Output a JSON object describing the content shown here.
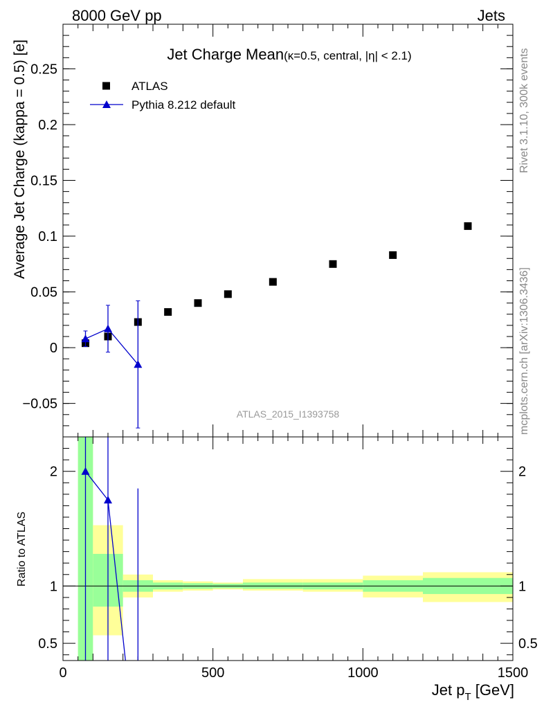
{
  "header": {
    "left": "8000 GeV pp",
    "right": "Jets"
  },
  "side_text": {
    "rivet": "Rivet 3.1.10,  300k events",
    "mcplots": "mcplots.cern.ch [arXiv:1306.3436]"
  },
  "chart_data": [
    {
      "type": "scatter",
      "title_main": "Jet Charge Mean",
      "title_sub": "(κ=0.5, central, |η| < 2.1)",
      "watermark": "ATLAS_2015_I1393758",
      "ylabel": "Average Jet Charge (kappa = 0.5) [e]",
      "xlim": [
        0,
        1500
      ],
      "ylim": [
        -0.08,
        0.29
      ],
      "y_ticks": [
        {
          "value": -0.05,
          "label": "−0.05"
        },
        {
          "value": 0,
          "label": "0"
        },
        {
          "value": 0.05,
          "label": "0.05"
        },
        {
          "value": 0.1,
          "label": "0.1"
        },
        {
          "value": 0.15,
          "label": "0.15"
        },
        {
          "value": 0.2,
          "label": "0.2"
        },
        {
          "value": 0.25,
          "label": "0.25"
        }
      ],
      "legend": [
        {
          "label": "ATLAS",
          "marker": "square",
          "color": "#000000"
        },
        {
          "label": "Pythia 8.212 default",
          "marker": "triangle",
          "color": "#0000cc"
        }
      ],
      "series": [
        {
          "name": "ATLAS",
          "color": "#000000",
          "marker": "square",
          "x": [
            75,
            150,
            250,
            350,
            450,
            550,
            700,
            900,
            1100,
            1350
          ],
          "y": [
            0.004,
            0.01,
            0.023,
            0.032,
            0.04,
            0.048,
            0.059,
            0.075,
            0.083,
            0.109
          ]
        },
        {
          "name": "Pythia 8.212 default",
          "color": "#0000cc",
          "marker": "triangle",
          "x": [
            75,
            150,
            250
          ],
          "y": [
            0.008,
            0.017,
            -0.015
          ],
          "err": [
            0.007,
            0.021,
            0.057
          ]
        }
      ]
    },
    {
      "type": "line",
      "ylabel": "Ratio to ATLAS",
      "xlabel": "Jet p_T [GeV]",
      "xlim": [
        0,
        1500
      ],
      "ylim": [
        0.35,
        2.3
      ],
      "x_ticks": [
        {
          "value": 0,
          "label": "0"
        },
        {
          "value": 500,
          "label": "500"
        },
        {
          "value": 1000,
          "label": "1000"
        },
        {
          "value": 1500,
          "label": "1500"
        }
      ],
      "y_ticks": [
        {
          "value": 0.5,
          "label": "0.5"
        },
        {
          "value": 1,
          "label": "1"
        },
        {
          "value": 2,
          "label": "2"
        }
      ],
      "bands": [
        {
          "x0": 50,
          "x1": 100,
          "inner": [
            0.3,
            2.4
          ],
          "outer": [
            0.3,
            2.4
          ]
        },
        {
          "x0": 100,
          "x1": 200,
          "inner": [
            0.82,
            1.28
          ],
          "outer": [
            0.57,
            1.53
          ]
        },
        {
          "x0": 200,
          "x1": 300,
          "inner": [
            0.95,
            1.05
          ],
          "outer": [
            0.9,
            1.1
          ]
        },
        {
          "x0": 300,
          "x1": 400,
          "inner": [
            0.97,
            1.03
          ],
          "outer": [
            0.95,
            1.05
          ]
        },
        {
          "x0": 400,
          "x1": 500,
          "inner": [
            0.975,
            1.025
          ],
          "outer": [
            0.96,
            1.04
          ]
        },
        {
          "x0": 500,
          "x1": 600,
          "inner": [
            0.98,
            1.02
          ],
          "outer": [
            0.97,
            1.03
          ]
        },
        {
          "x0": 600,
          "x1": 800,
          "inner": [
            0.975,
            1.03
          ],
          "outer": [
            0.96,
            1.06
          ]
        },
        {
          "x0": 800,
          "x1": 1000,
          "inner": [
            0.97,
            1.03
          ],
          "outer": [
            0.95,
            1.06
          ]
        },
        {
          "x0": 1000,
          "x1": 1200,
          "inner": [
            0.95,
            1.05
          ],
          "outer": [
            0.9,
            1.09
          ]
        },
        {
          "x0": 1200,
          "x1": 1500,
          "inner": [
            0.93,
            1.07
          ],
          "outer": [
            0.86,
            1.12
          ]
        }
      ],
      "series": [
        {
          "name": "Pythia 8.212 default",
          "color": "#0000cc",
          "x": [
            75,
            150,
            250
          ],
          "y": [
            2.0,
            1.75,
            -0.65
          ]
        }
      ]
    }
  ]
}
